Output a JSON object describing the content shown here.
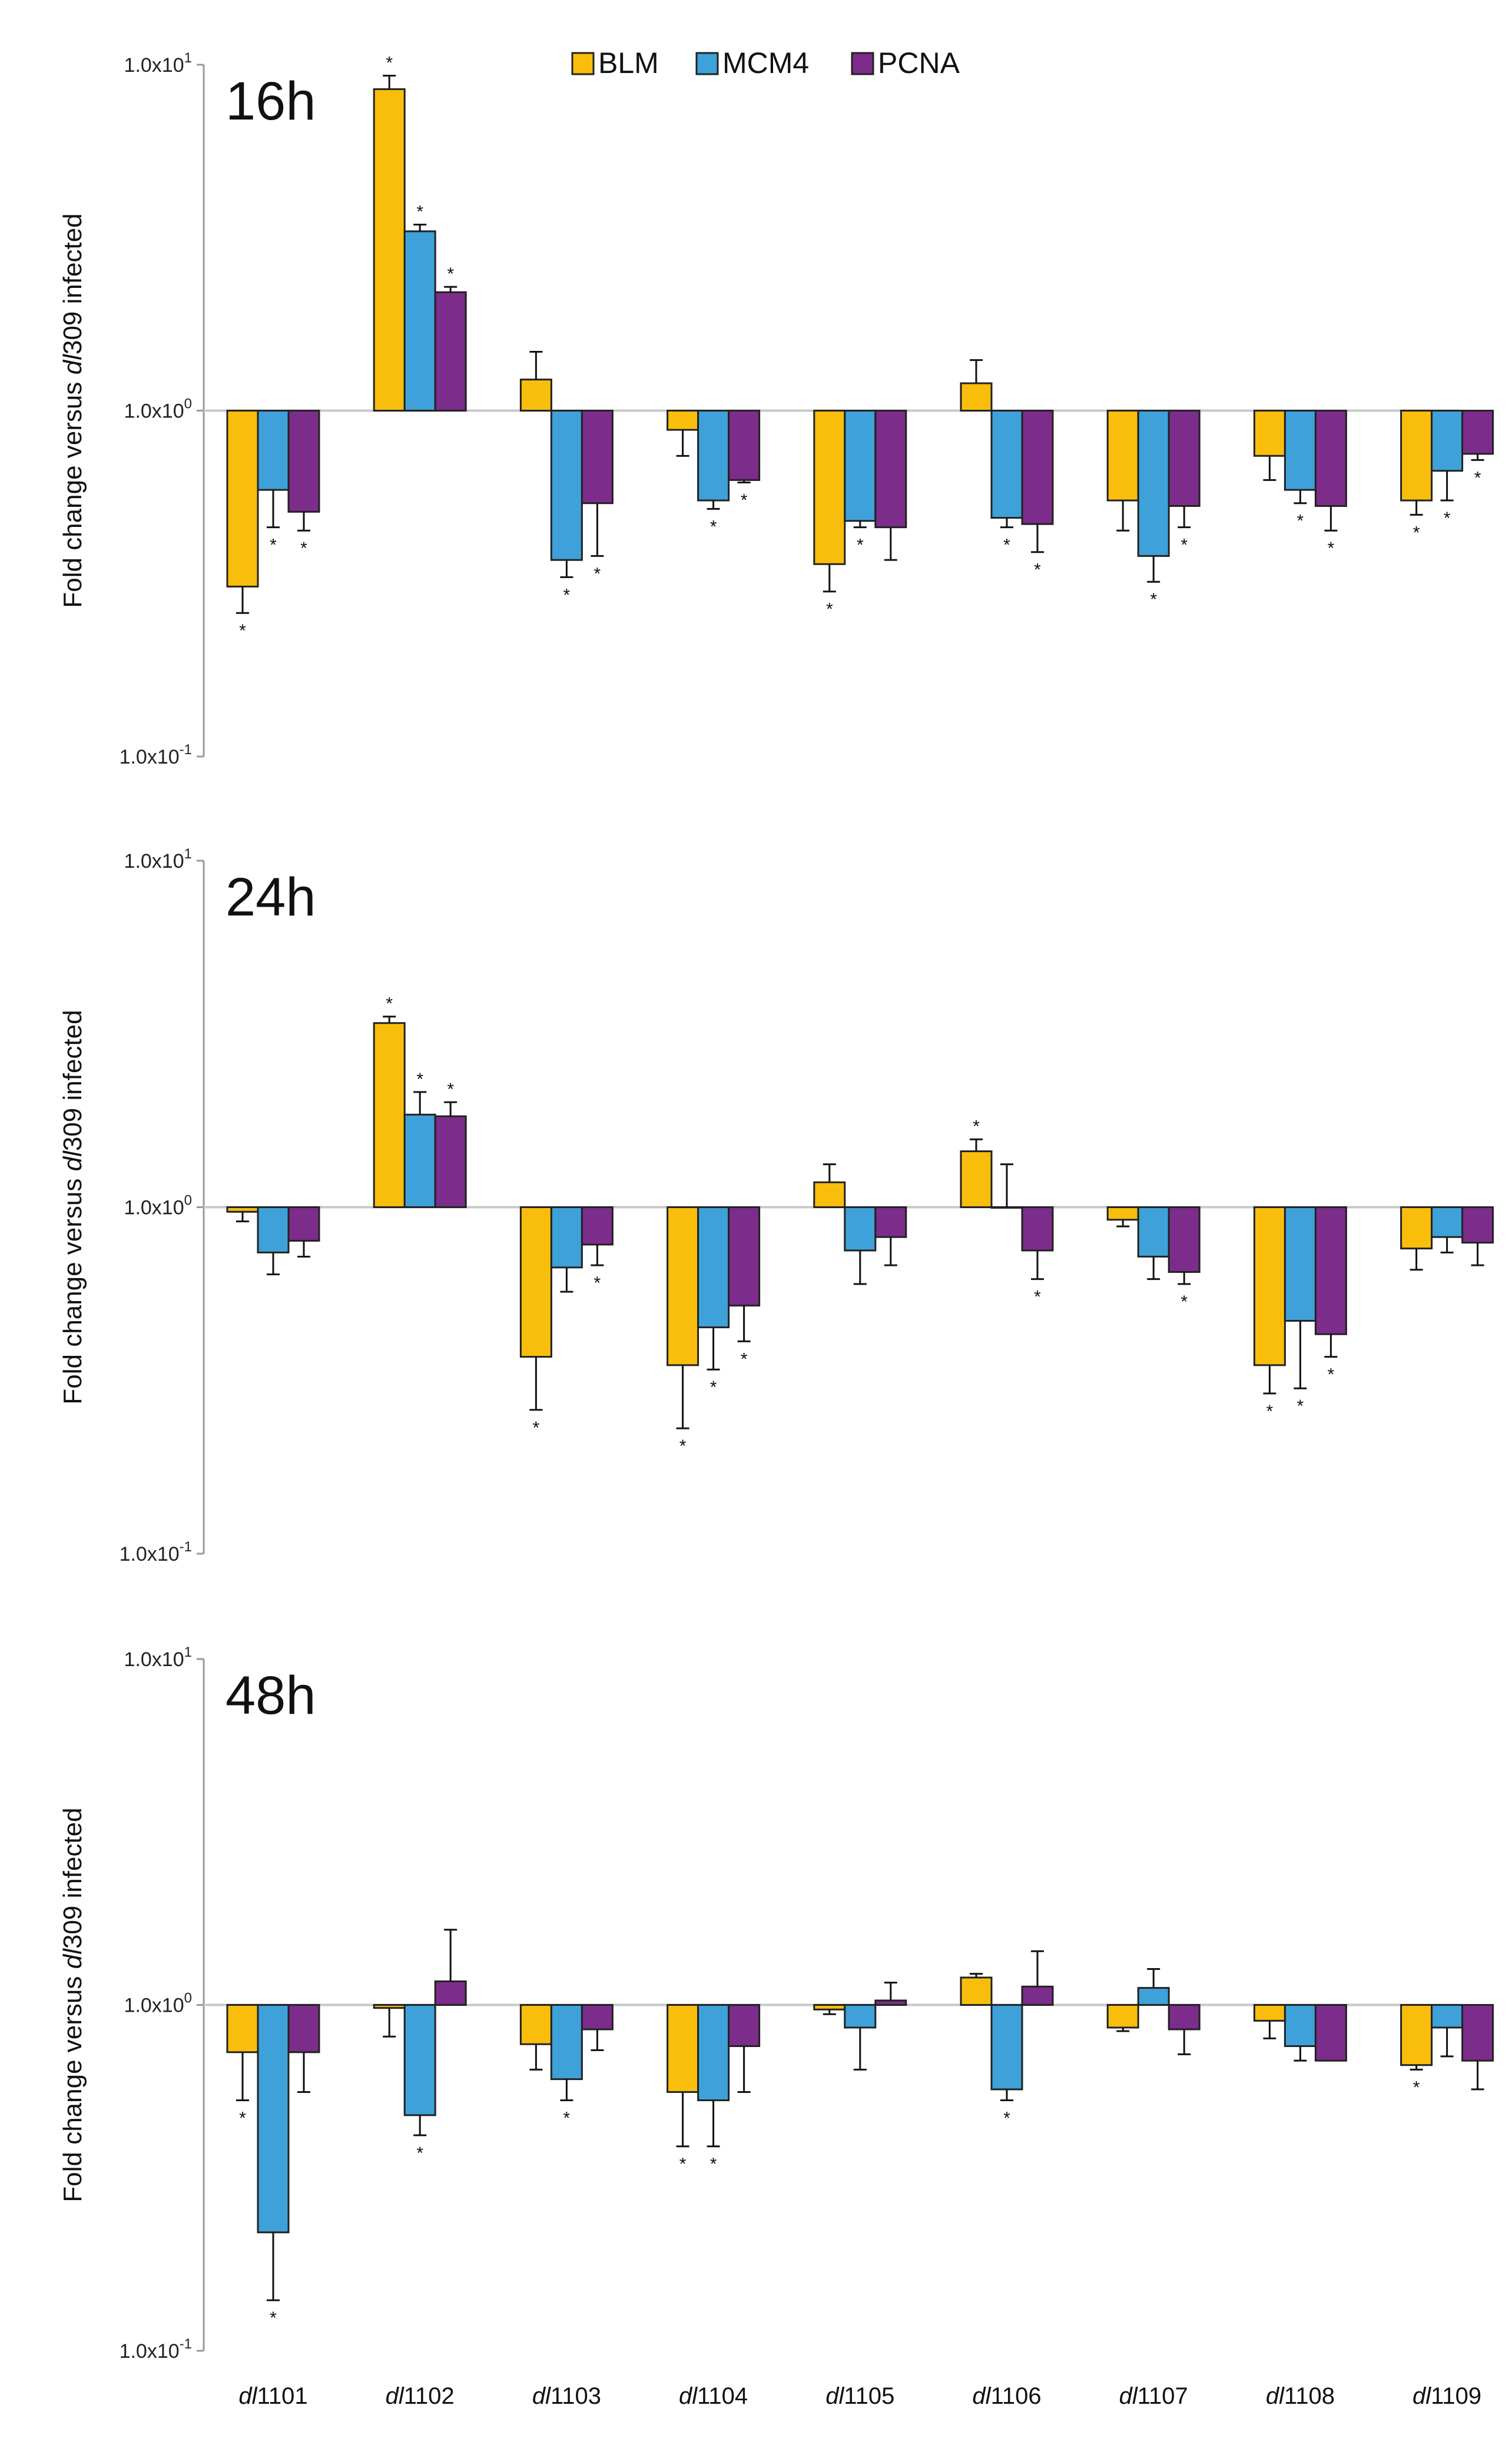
{
  "chart_data": {
    "type": "bar",
    "scale": "log",
    "legend": {
      "placement": "top-center",
      "items": [
        {
          "name": "BLM",
          "color": "#F9BE0B"
        },
        {
          "name": "MCM4",
          "color": "#3EA1D9"
        },
        {
          "name": "PCNA",
          "color": "#7C2C8A"
        }
      ]
    },
    "categories": [
      {
        "prefix": "dl",
        "num": "1101"
      },
      {
        "prefix": "dl",
        "num": "1102"
      },
      {
        "prefix": "dl",
        "num": "1103"
      },
      {
        "prefix": "dl",
        "num": "1104"
      },
      {
        "prefix": "dl",
        "num": "1105"
      },
      {
        "prefix": "dl",
        "num": "1106"
      },
      {
        "prefix": "dl",
        "num": "1107"
      },
      {
        "prefix": "dl",
        "num": "1108"
      },
      {
        "prefix": "dl",
        "num": "1109"
      }
    ],
    "ylabel": {
      "pre": "Fold change versus ",
      "italic": "dl",
      "post": "309 infected"
    },
    "yticks": [
      {
        "base": "1.0x10",
        "exp": "1",
        "value": 10
      },
      {
        "base": "1.0x10",
        "exp": "0",
        "value": 1
      },
      {
        "base": "1.0x10",
        "exp": "-1",
        "value": 0.1
      }
    ],
    "ylim": [
      0.1,
      10
    ],
    "panels": [
      {
        "title": "16h",
        "series": [
          {
            "name": "BLM",
            "values": [
              0.31,
              8.5,
              1.23,
              0.88,
              0.36,
              1.2,
              0.55,
              0.74,
              0.55
            ],
            "err": [
              0.05,
              0.8,
              0.25,
              0.14,
              0.06,
              0.2,
              0.1,
              0.11,
              0.05
            ],
            "sig": [
              true,
              true,
              false,
              false,
              true,
              false,
              false,
              false,
              true
            ]
          },
          {
            "name": "MCM4",
            "values": [
              0.59,
              3.3,
              0.37,
              0.55,
              0.48,
              0.49,
              0.38,
              0.59,
              0.67
            ],
            "err": [
              0.13,
              0.15,
              0.04,
              0.03,
              0.02,
              0.03,
              0.06,
              0.05,
              0.12
            ],
            "sig": [
              true,
              true,
              true,
              true,
              true,
              true,
              true,
              true,
              true
            ]
          },
          {
            "name": "PCNA",
            "values": [
              0.51,
              2.2,
              0.54,
              0.63,
              0.46,
              0.47,
              0.53,
              0.53,
              0.75
            ],
            "err": [
              0.06,
              0.08,
              0.16,
              0.01,
              0.09,
              0.08,
              0.07,
              0.08,
              0.03
            ],
            "sig": [
              true,
              true,
              true,
              true,
              false,
              true,
              true,
              true,
              true
            ]
          }
        ]
      },
      {
        "title": "24h",
        "series": [
          {
            "name": "BLM",
            "values": [
              0.97,
              3.4,
              0.37,
              0.35,
              1.18,
              1.45,
              0.92,
              0.35,
              0.76
            ],
            "err": [
              0.06,
              0.15,
              0.11,
              0.12,
              0.15,
              0.12,
              0.04,
              0.06,
              0.1
            ],
            "sig": [
              false,
              true,
              true,
              true,
              false,
              true,
              false,
              true,
              false
            ]
          },
          {
            "name": "MCM4",
            "values": [
              0.74,
              1.85,
              0.67,
              0.45,
              0.75,
              1.0,
              0.72,
              0.47,
              0.82
            ],
            "err": [
              0.1,
              0.3,
              0.1,
              0.11,
              0.15,
              0.33,
              0.1,
              0.17,
              0.08
            ],
            "sig": [
              false,
              true,
              false,
              true,
              false,
              false,
              false,
              true,
              false
            ]
          },
          {
            "name": "PCNA",
            "values": [
              0.8,
              1.83,
              0.78,
              0.52,
              0.82,
              0.75,
              0.65,
              0.43,
              0.79
            ],
            "err": [
              0.08,
              0.18,
              0.1,
              0.11,
              0.14,
              0.13,
              0.05,
              0.06,
              0.11
            ],
            "sig": [
              false,
              true,
              true,
              true,
              false,
              true,
              true,
              true,
              false
            ]
          }
        ]
      },
      {
        "title": "48h",
        "series": [
          {
            "name": "BLM",
            "values": [
              0.73,
              0.98,
              0.77,
              0.56,
              0.97,
              1.2,
              0.86,
              0.9,
              0.67
            ],
            "err": [
              0.2,
              0.17,
              0.12,
              0.17,
              0.03,
              0.03,
              0.02,
              0.1,
              0.02
            ],
            "sig": [
              true,
              false,
              false,
              true,
              false,
              false,
              false,
              false,
              true
            ]
          },
          {
            "name": "MCM4",
            "values": [
              0.22,
              0.48,
              0.61,
              0.53,
              0.86,
              0.57,
              1.12,
              0.76,
              0.86
            ],
            "err": [
              0.08,
              0.06,
              0.08,
              0.14,
              0.21,
              0.04,
              0.15,
              0.07,
              0.15
            ],
            "sig": [
              true,
              true,
              true,
              true,
              false,
              true,
              false,
              false,
              false
            ]
          },
          {
            "name": "PCNA",
            "values": [
              0.73,
              1.17,
              0.85,
              0.76,
              1.03,
              1.13,
              0.85,
              0.69,
              0.69
            ],
            "err": [
              0.17,
              0.48,
              0.11,
              0.2,
              0.13,
              0.3,
              0.13,
              0.0,
              0.12
            ],
            "sig": [
              false,
              false,
              false,
              false,
              false,
              false,
              false,
              false,
              false
            ]
          }
        ]
      }
    ]
  }
}
